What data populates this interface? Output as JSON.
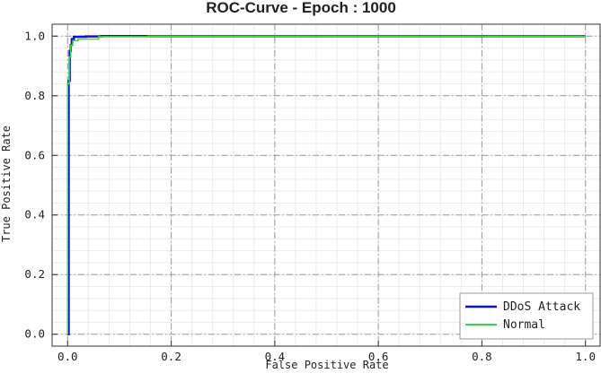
{
  "chart_data": {
    "type": "line",
    "title": "ROC-Curve - Epoch : 1000",
    "xlabel": "False Positive Rate",
    "ylabel": "True Positive Rate",
    "xlim": [
      -0.03,
      1.03
    ],
    "ylim": [
      -0.04,
      1.04
    ],
    "xticks": [
      "0.0",
      "0.2",
      "0.4",
      "0.6",
      "0.8",
      "1.0"
    ],
    "yticks": [
      "0.0",
      "0.2",
      "0.4",
      "0.6",
      "0.8",
      "1.0"
    ],
    "grid": true,
    "legend_position": "lower-right",
    "series": [
      {
        "name": "DDoS Attack",
        "color": "#0a12d6",
        "x": [
          0.0,
          0.002,
          0.002,
          0.004,
          0.004,
          0.006,
          0.006,
          0.008,
          0.008,
          0.012,
          0.012,
          0.035,
          0.035,
          0.065,
          0.065,
          0.155,
          0.155,
          1.0
        ],
        "y": [
          0.0,
          0.0,
          0.85,
          0.85,
          0.95,
          0.95,
          0.97,
          0.97,
          0.99,
          0.99,
          0.998,
          0.998,
          0.999,
          0.999,
          1.0,
          1.0,
          1.0,
          1.0
        ]
      },
      {
        "name": "Normal",
        "color": "#3fd64a",
        "x": [
          0.0,
          0.0,
          0.003,
          0.003,
          0.006,
          0.006,
          0.01,
          0.01,
          0.02,
          0.02,
          0.06,
          0.06,
          0.155,
          0.155,
          1.0
        ],
        "y": [
          0.0,
          0.84,
          0.84,
          0.93,
          0.93,
          0.97,
          0.97,
          0.985,
          0.985,
          0.99,
          0.99,
          0.998,
          0.998,
          1.0,
          1.0
        ]
      }
    ]
  }
}
